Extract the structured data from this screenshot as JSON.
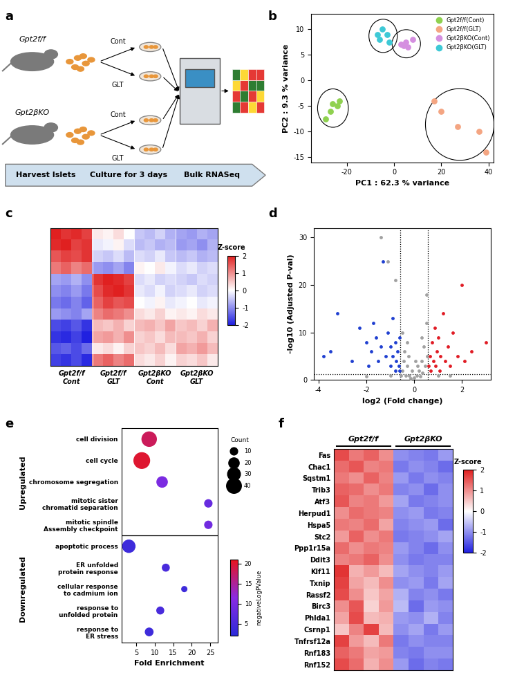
{
  "panel_labels": [
    "a",
    "b",
    "c",
    "d",
    "e",
    "f"
  ],
  "diagram": {
    "mouse_labels": [
      "Gpt2f/f",
      "Gpt2βKO"
    ],
    "treatments": [
      "Cont",
      "GLT"
    ],
    "steps": [
      "Harvest Islets",
      "Culture for 3 days",
      "Bulk RNASeq"
    ]
  },
  "chart_data": [
    {
      "type": "scatter",
      "xlabel": "PC1 : 62.3 % variance",
      "ylabel": "PC2 : 9.3 % variance",
      "xlim": [
        -35,
        42
      ],
      "ylim": [
        -16,
        13
      ],
      "xticks": [
        -20,
        0,
        20,
        40
      ],
      "yticks": [
        -15,
        -10,
        -5,
        0,
        5,
        10
      ],
      "legend": "upper right",
      "series": [
        {
          "name": "Gpt2f/f(Cont)",
          "color": "#8fd14f",
          "x": [
            -29,
            -27,
            -26,
            -24,
            -23
          ],
          "y": [
            -7.5,
            -6,
            -4.5,
            -5,
            -4
          ]
        },
        {
          "name": "Gpt2f/f(GLT)",
          "color": "#f4a582",
          "x": [
            17,
            20,
            27,
            36,
            39
          ],
          "y": [
            -4,
            -6,
            -9,
            -10,
            -14
          ]
        },
        {
          "name": "Gpt2βKO(Cont)",
          "color": "#d58fe0",
          "x": [
            3,
            4,
            5,
            6,
            8
          ],
          "y": [
            7,
            6.8,
            7.5,
            6.5,
            8
          ]
        },
        {
          "name": "Gpt2βKO(GLT)",
          "color": "#3ec9d6",
          "x": [
            -7,
            -6,
            -5,
            -3,
            -2
          ],
          "y": [
            9,
            8,
            10,
            9,
            7.5
          ]
        }
      ]
    },
    {
      "type": "heatmap",
      "columns": [
        "Gpt2f/f\nCont",
        "Gpt2f/f\nGLT",
        "Gpt2βKO\nCont",
        "Gpt2βKO\nGLT"
      ],
      "colorbar_title": "Z-score",
      "colorbar_range": [
        -2,
        2
      ],
      "colorbar_ticks": [
        -2,
        -1,
        0,
        1,
        2
      ],
      "cells": [
        [
          2,
          1.8,
          1.9,
          1.7,
          0.2,
          0.1,
          0.3,
          0.0,
          -0.5,
          -0.6,
          -0.4,
          -0.7,
          -0.8,
          -0.9,
          -0.7,
          -0.8
        ],
        [
          1.9,
          2,
          1.7,
          1.8,
          -0.2,
          -0.1,
          0.1,
          -0.3,
          -0.6,
          -0.5,
          -0.7,
          -0.6,
          -0.9,
          -0.8,
          -1,
          -0.7
        ],
        [
          1.5,
          1.7,
          1.6,
          1.8,
          -0.4,
          -0.5,
          -0.3,
          -0.6,
          -0.3,
          -0.4,
          -0.2,
          -0.5,
          -0.6,
          -0.5,
          -0.7,
          -0.6
        ],
        [
          1.2,
          1.4,
          1.1,
          1.3,
          -0.9,
          -1,
          -0.8,
          -1.1,
          0.1,
          0,
          0.2,
          -0.1,
          -0.3,
          -0.2,
          -0.4,
          -0.3
        ],
        [
          -0.8,
          -0.9,
          -0.7,
          -1,
          1.8,
          2,
          1.9,
          1.7,
          -0.3,
          -0.2,
          -0.4,
          -0.3,
          -0.4,
          -0.5,
          -0.3,
          -0.4
        ],
        [
          -1,
          -1.1,
          -0.9,
          -1.2,
          1.6,
          1.9,
          2,
          1.8,
          -0.2,
          -0.3,
          -0.1,
          -0.4,
          -0.3,
          -0.2,
          -0.4,
          -0.3
        ],
        [
          -1.2,
          -1.3,
          -1.1,
          -1.4,
          1.4,
          1.7,
          1.5,
          1.6,
          0,
          -0.1,
          0.1,
          -0.2,
          -0.1,
          0,
          -0.2,
          -0.1
        ],
        [
          -0.9,
          -1,
          -1.1,
          -0.8,
          1.1,
          1.3,
          1.2,
          1.0,
          0.3,
          0.2,
          0.4,
          0.1,
          0.2,
          0.1,
          0.3,
          0.2
        ],
        [
          -1.6,
          -1.7,
          -1.5,
          -1.8,
          0.6,
          0.5,
          0.7,
          0.4,
          0.6,
          0.7,
          0.5,
          0.8,
          0.5,
          0.6,
          0.4,
          0.7
        ],
        [
          -1.8,
          -1.9,
          -1.7,
          -2,
          0.8,
          0.9,
          0.7,
          1.0,
          0.4,
          0.5,
          0.3,
          0.6,
          0.6,
          0.5,
          0.7,
          0.4
        ],
        [
          -1.5,
          -1.4,
          -1.6,
          -1.3,
          0.2,
          0.3,
          0.1,
          0.4,
          0.5,
          0.4,
          0.6,
          0.3,
          0.8,
          0.7,
          0.9,
          0.6
        ],
        [
          -1.7,
          -1.8,
          -1.6,
          -1.9,
          1.2,
          1.4,
          1.1,
          1.3,
          0.3,
          0.2,
          0.4,
          0.1,
          0.4,
          0.3,
          0.5,
          0.2
        ]
      ]
    },
    {
      "type": "scatter",
      "xlabel": "log2 (Fold change)",
      "ylabel": "-log10 (Adjusted P-val)",
      "xlim": [
        -4.2,
        3.2
      ],
      "ylim": [
        0,
        32
      ],
      "xticks": [
        -4,
        -2,
        0,
        2
      ],
      "yticks": [
        0,
        10,
        20,
        30
      ],
      "fc_thresholds": [
        -0.58,
        0.58
      ],
      "p_threshold": 1.3,
      "series": [
        {
          "color": "#a0a0a0",
          "points": [
            [
              -1.4,
              30
            ],
            [
              -1.1,
              25
            ],
            [
              -0.8,
              21
            ],
            [
              -0.5,
              10
            ],
            [
              -0.4,
              6
            ],
            [
              -0.3,
              3
            ],
            [
              -0.2,
              1
            ],
            [
              -0.1,
              2
            ],
            [
              0,
              0.5
            ],
            [
              0.1,
              1
            ],
            [
              0.2,
              2
            ],
            [
              0.3,
              4
            ],
            [
              0.4,
              7
            ],
            [
              0.5,
              12
            ],
            [
              -0.5,
              2
            ],
            [
              -0.45,
              4
            ],
            [
              -0.35,
              1
            ],
            [
              -0.25,
              5
            ],
            [
              0.15,
              3
            ],
            [
              0.25,
              0.8
            ],
            [
              0.35,
              1.5
            ],
            [
              0.45,
              3
            ],
            [
              0.55,
              5
            ],
            [
              -0.55,
              1
            ],
            [
              0.05,
              4
            ],
            [
              -0.15,
              0.3
            ],
            [
              0.3,
              9
            ],
            [
              -0.3,
              8
            ],
            [
              0.5,
              18
            ],
            [
              -1.0,
              1
            ],
            [
              1.0,
              1
            ],
            [
              -2,
              0.8
            ],
            [
              1.5,
              1
            ]
          ]
        },
        {
          "color": "#1f3fd0",
          "points": [
            [
              -3.8,
              5
            ],
            [
              -3.5,
              6
            ],
            [
              -3.2,
              14
            ],
            [
              -2.6,
              4
            ],
            [
              -2.3,
              11
            ],
            [
              -2.0,
              8
            ],
            [
              -1.9,
              3
            ],
            [
              -1.8,
              6
            ],
            [
              -1.7,
              12
            ],
            [
              -1.6,
              9
            ],
            [
              -1.5,
              4
            ],
            [
              -1.4,
              7
            ],
            [
              -1.3,
              25
            ],
            [
              -1.2,
              5
            ],
            [
              -1.1,
              10
            ],
            [
              -1.0,
              3
            ],
            [
              -1.0,
              7
            ],
            [
              -0.9,
              13
            ],
            [
              -0.9,
              5
            ],
            [
              -0.8,
              2
            ],
            [
              -0.8,
              8
            ],
            [
              -0.75,
              4
            ],
            [
              -0.7,
              6
            ],
            [
              -0.65,
              3
            ],
            [
              -0.6,
              2
            ],
            [
              -0.6,
              9
            ]
          ]
        },
        {
          "color": "#e01b24",
          "points": [
            [
              0.6,
              3
            ],
            [
              0.65,
              5
            ],
            [
              0.7,
              2
            ],
            [
              0.75,
              8
            ],
            [
              0.8,
              4
            ],
            [
              0.85,
              11
            ],
            [
              0.9,
              3
            ],
            [
              0.95,
              6
            ],
            [
              1.0,
              9
            ],
            [
              1.05,
              2
            ],
            [
              1.1,
              5
            ],
            [
              1.2,
              14
            ],
            [
              1.3,
              4
            ],
            [
              1.4,
              7
            ],
            [
              1.5,
              3
            ],
            [
              1.6,
              10
            ],
            [
              1.8,
              5
            ],
            [
              2.0,
              20
            ],
            [
              2.1,
              4
            ],
            [
              2.4,
              6
            ],
            [
              3.0,
              8
            ]
          ]
        }
      ]
    },
    {
      "type": "bubble",
      "xlabel": "Fold Enrichment",
      "xlim": [
        1,
        27
      ],
      "xticks": [
        5,
        10,
        15,
        20,
        25
      ],
      "categories": [
        "cell division",
        "cell cycle",
        "chromosome segregation",
        "mitotic sister\nchromatid separation",
        "mitotic spindle\nAssembly checkpoint",
        "apoptotic process",
        "ER unfolded\nprotein response",
        "cellular response\nto cadmium ion",
        "response to\nunfolded protein",
        "response to\nER stress"
      ],
      "groups": [
        "Upregulated",
        "Upregulated",
        "Upregulated",
        "Upregulated",
        "Upregulated",
        "Downregulated",
        "Downregulated",
        "Downregulated",
        "Downregulated",
        "Downregulated"
      ],
      "values": [
        8.5,
        6.5,
        12,
        24.5,
        24.5,
        3,
        13,
        18,
        11.5,
        8.5
      ],
      "count": [
        38,
        45,
        20,
        10,
        10,
        28,
        9,
        5,
        9,
        11
      ],
      "negativeLogPValue": [
        18,
        20,
        10,
        8,
        9,
        4,
        5,
        4,
        5,
        4
      ],
      "size_legend_title": "Count",
      "size_legend": [
        10,
        20,
        30,
        40
      ],
      "colorbar_title": "negativeLogPValue",
      "colorbar_range": [
        2,
        21
      ],
      "colorbar_ticks": [
        5,
        10,
        15,
        20
      ]
    },
    {
      "type": "heatmap",
      "rows": [
        "Fas",
        "Chac1",
        "Sqstm1",
        "Trib3",
        "Atf3",
        "Herpud1",
        "Hspa5",
        "Stc2",
        "Ppp1r15a",
        "Ddit3",
        "Klf11",
        "Txnip",
        "Rassf2",
        "Birc3",
        "Phlda1",
        "Csrnp1",
        "Tnfrsf12a",
        "Rnf183",
        "Rnf152"
      ],
      "columns": [
        "Gpt2f/f",
        "Gpt2βKO"
      ],
      "colorbar_title": "Z-score",
      "colorbar_range": [
        -2,
        2
      ],
      "colorbar_ticks": [
        -2,
        -1,
        0,
        1,
        2
      ],
      "cells": [
        [
          1.6,
          1.2,
          1.4,
          1.0,
          -1.0,
          -1.1,
          -1.2,
          -0.9
        ],
        [
          1.3,
          1.5,
          1.1,
          1.2,
          -1.2,
          -1.0,
          -1.1,
          -1.3
        ],
        [
          1.2,
          1.0,
          1.4,
          1.1,
          -0.9,
          -1.2,
          -1.0,
          -1.1
        ],
        [
          1.4,
          1.3,
          1.0,
          1.2,
          -1.1,
          -1.0,
          -1.3,
          -1.0
        ],
        [
          1.5,
          1.1,
          1.2,
          0.9,
          -0.8,
          -1.2,
          -1.1,
          -1.0
        ],
        [
          1.0,
          1.3,
          1.2,
          1.1,
          -1.0,
          -0.9,
          -1.2,
          -1.1
        ],
        [
          1.2,
          1.1,
          1.3,
          0.8,
          -1.1,
          -1.0,
          -0.9,
          -1.3
        ],
        [
          0.9,
          1.4,
          1.0,
          1.2,
          -1.2,
          -1.1,
          -1.0,
          -0.8
        ],
        [
          1.3,
          1.0,
          1.2,
          1.1,
          -0.9,
          -1.1,
          -1.3,
          -1.0
        ],
        [
          1.1,
          1.2,
          1.4,
          1.0,
          -1.0,
          -1.2,
          -1.1,
          -1.1
        ],
        [
          1.8,
          0.7,
          0.9,
          0.6,
          -0.8,
          -1.0,
          -1.1,
          -0.9
        ],
        [
          1.7,
          0.8,
          0.6,
          1.0,
          -1.0,
          -0.9,
          -1.2,
          -0.8
        ],
        [
          1.6,
          1.0,
          0.5,
          0.8,
          -0.7,
          -1.1,
          -1.0,
          -1.2
        ],
        [
          1.0,
          1.5,
          0.4,
          0.9,
          -0.6,
          -1.3,
          -0.9,
          -1.0
        ],
        [
          0.8,
          1.6,
          0.6,
          0.7,
          -0.9,
          -1.0,
          -0.7,
          -1.1
        ],
        [
          0.5,
          1.1,
          1.7,
          0.6,
          -1.0,
          -0.8,
          -1.2,
          -0.9
        ],
        [
          1.7,
          0.9,
          0.6,
          1.2,
          -1.2,
          -1.0,
          -1.1,
          -1.1
        ],
        [
          1.4,
          1.2,
          0.8,
          0.9,
          -1.1,
          -1.2,
          -1.0,
          -1.0
        ],
        [
          1.6,
          1.3,
          0.7,
          1.0,
          -0.9,
          -1.3,
          -1.1,
          -1.2
        ]
      ]
    }
  ]
}
